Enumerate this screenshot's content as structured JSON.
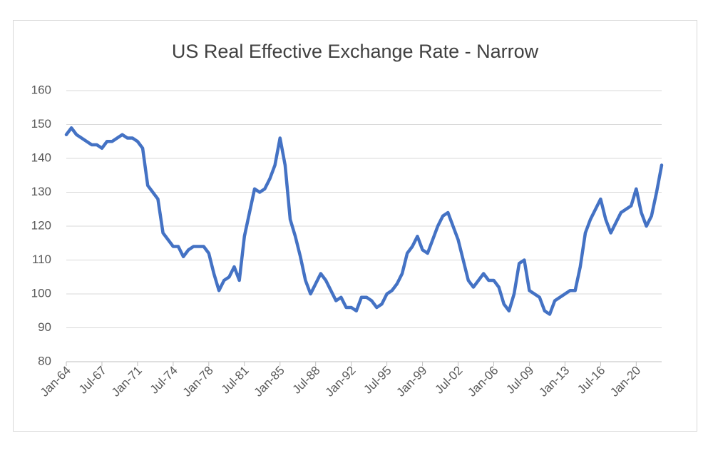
{
  "chart_data": {
    "type": "line",
    "title": "US Real Effective Exchange Rate - Narrow",
    "categories": [
      "Jan-64",
      null,
      null,
      null,
      null,
      null,
      null,
      "Jul-67",
      null,
      null,
      null,
      null,
      null,
      null,
      "Jan-71",
      null,
      null,
      null,
      null,
      null,
      null,
      "Jul-74",
      null,
      null,
      null,
      null,
      null,
      null,
      "Jan-78",
      null,
      null,
      null,
      null,
      null,
      null,
      "Jul-81",
      null,
      null,
      null,
      null,
      null,
      null,
      "Jan-85",
      null,
      null,
      null,
      null,
      null,
      null,
      "Jul-88",
      null,
      null,
      null,
      null,
      null,
      null,
      "Jan-92",
      null,
      null,
      null,
      null,
      null,
      null,
      "Jul-95",
      null,
      null,
      null,
      null,
      null,
      null,
      "Jan-99",
      null,
      null,
      null,
      null,
      null,
      null,
      "Jul-02",
      null,
      null,
      null,
      null,
      null,
      null,
      "Jan-06",
      null,
      null,
      null,
      null,
      null,
      null,
      "Jul-09",
      null,
      null,
      null,
      null,
      null,
      null,
      "Jan-13",
      null,
      null,
      null,
      null,
      null,
      null,
      "Jul-16",
      null,
      null,
      null,
      null,
      null,
      null,
      "Jan-20",
      null,
      null,
      null,
      null,
      null
    ],
    "series": [
      {
        "color": "#4472c4",
        "values": [
          147,
          149,
          147,
          146,
          145,
          144,
          144,
          143,
          145,
          145,
          146,
          147,
          146,
          146,
          145,
          143,
          132,
          130,
          128,
          118,
          116,
          114,
          114,
          111,
          113,
          114,
          114,
          114,
          112,
          106,
          101,
          104,
          105,
          108,
          104,
          117,
          124,
          131,
          130,
          131,
          134,
          138,
          146,
          138,
          122,
          117,
          111,
          104,
          100,
          103,
          106,
          104,
          101,
          98,
          99,
          96,
          96,
          95,
          99,
          99,
          98,
          96,
          97,
          100,
          101,
          103,
          106,
          112,
          114,
          117,
          113,
          112,
          116,
          120,
          123,
          124,
          120,
          116,
          110,
          104,
          102,
          104,
          106,
          104,
          104,
          102,
          97,
          95,
          100,
          109,
          110,
          101,
          100,
          99,
          95,
          94,
          98,
          99,
          100,
          101,
          101,
          108,
          118,
          122,
          125,
          128,
          122,
          118,
          121,
          124,
          125,
          126,
          131,
          124,
          120,
          123,
          130,
          138
        ]
      }
    ],
    "ylim": [
      80,
      160
    ],
    "yticks": [
      80,
      90,
      100,
      110,
      120,
      130,
      140,
      150,
      160
    ],
    "grid": true
  }
}
